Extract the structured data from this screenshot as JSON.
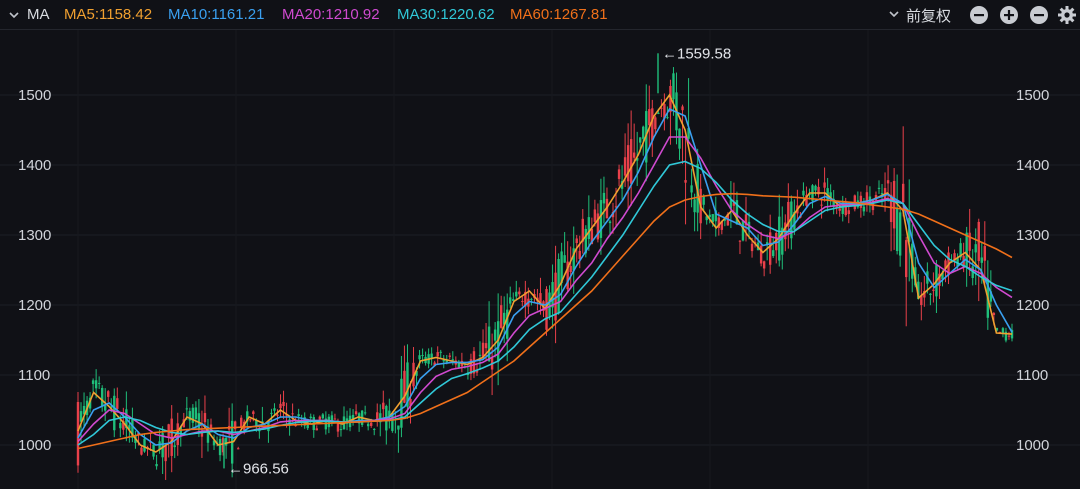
{
  "header": {
    "ma_title": "MA",
    "ma_items": [
      {
        "label": "MA5:1158.42",
        "color": "#f0a030"
      },
      {
        "label": "MA10:1161.21",
        "color": "#3aa0f0"
      },
      {
        "label": "MA20:1210.92",
        "color": "#d04ad0"
      },
      {
        "label": "MA30:1220.62",
        "color": "#30c8d8"
      },
      {
        "label": "MA60:1267.81",
        "color": "#f0701a"
      }
    ],
    "adjust_label": "前复权"
  },
  "chart_data": {
    "type": "line",
    "ylim": [
      960,
      1580
    ],
    "yticks": [
      1000,
      1100,
      1200,
      1300,
      1400,
      1500
    ],
    "grid": true,
    "annotations": [
      {
        "text": "←1559.58",
        "value": 1559.58
      },
      {
        "text": "←966.56",
        "value": 966.56
      }
    ],
    "colors": {
      "up": "#e8404a",
      "down": "#1fbf7a"
    },
    "series": [
      {
        "name": "MA5",
        "color": "#f0a030",
        "values": [
          1020,
          1075,
          1055,
          1030,
          1000,
          990,
          1005,
          1040,
          1030,
          1000,
          1005,
          1040,
          1030,
          1050,
          1035,
          1030,
          1035,
          1030,
          1040,
          1035,
          1040,
          1070,
          1120,
          1125,
          1120,
          1115,
          1125,
          1150,
          1205,
          1220,
          1195,
          1230,
          1280,
          1310,
          1340,
          1375,
          1415,
          1470,
          1500,
          1450,
          1340,
          1310,
          1335,
          1300,
          1275,
          1295,
          1330,
          1360,
          1360,
          1340,
          1345,
          1350,
          1360,
          1335,
          1210,
          1230,
          1260,
          1275,
          1250,
          1160,
          1158.42
        ]
      },
      {
        "name": "MA10",
        "color": "#3aa0f0",
        "values": [
          1010,
          1050,
          1060,
          1040,
          1015,
          1000,
          1003,
          1020,
          1030,
          1015,
          1010,
          1025,
          1030,
          1040,
          1040,
          1035,
          1035,
          1032,
          1035,
          1035,
          1040,
          1055,
          1095,
          1115,
          1118,
          1118,
          1122,
          1140,
          1185,
          1205,
          1200,
          1215,
          1255,
          1290,
          1320,
          1350,
          1390,
          1440,
          1480,
          1470,
          1400,
          1330,
          1320,
          1310,
          1285,
          1290,
          1315,
          1345,
          1355,
          1345,
          1345,
          1350,
          1358,
          1345,
          1260,
          1225,
          1245,
          1265,
          1250,
          1200,
          1161.21
        ]
      },
      {
        "name": "MA20",
        "color": "#d04ad0",
        "values": [
          1005,
          1030,
          1050,
          1045,
          1030,
          1015,
          1010,
          1015,
          1020,
          1020,
          1015,
          1020,
          1025,
          1033,
          1035,
          1035,
          1035,
          1033,
          1033,
          1035,
          1037,
          1045,
          1075,
          1098,
          1108,
          1112,
          1118,
          1130,
          1160,
          1185,
          1195,
          1205,
          1235,
          1260,
          1295,
          1325,
          1360,
          1400,
          1440,
          1440,
          1410,
          1370,
          1335,
          1315,
          1300,
          1295,
          1305,
          1325,
          1340,
          1343,
          1343,
          1347,
          1352,
          1345,
          1300,
          1260,
          1245,
          1255,
          1245,
          1225,
          1210.92
        ]
      },
      {
        "name": "MA30",
        "color": "#30c8d8",
        "values": [
          1000,
          1015,
          1035,
          1040,
          1035,
          1025,
          1018,
          1015,
          1018,
          1020,
          1018,
          1020,
          1023,
          1028,
          1032,
          1034,
          1034,
          1033,
          1033,
          1034,
          1035,
          1040,
          1060,
          1080,
          1095,
          1102,
          1110,
          1120,
          1140,
          1165,
          1180,
          1190,
          1215,
          1240,
          1270,
          1300,
          1335,
          1370,
          1400,
          1405,
          1395,
          1375,
          1350,
          1330,
          1315,
          1305,
          1305,
          1320,
          1335,
          1340,
          1342,
          1345,
          1350,
          1345,
          1315,
          1285,
          1265,
          1255,
          1240,
          1228,
          1220.62
        ]
      },
      {
        "name": "MA60",
        "color": "#f0701a",
        "values": [
          995,
          1000,
          1005,
          1010,
          1015,
          1018,
          1020,
          1022,
          1023,
          1024,
          1025,
          1026,
          1027,
          1028,
          1029,
          1030,
          1031,
          1032,
          1033,
          1034,
          1035,
          1038,
          1045,
          1055,
          1065,
          1075,
          1090,
          1105,
          1120,
          1140,
          1160,
          1180,
          1200,
          1220,
          1245,
          1270,
          1295,
          1320,
          1340,
          1350,
          1355,
          1358,
          1359,
          1358,
          1356,
          1355,
          1354,
          1352,
          1350,
          1348,
          1346,
          1343,
          1340,
          1337,
          1330,
          1320,
          1310,
          1300,
          1290,
          1280,
          1267.81
        ]
      }
    ]
  }
}
